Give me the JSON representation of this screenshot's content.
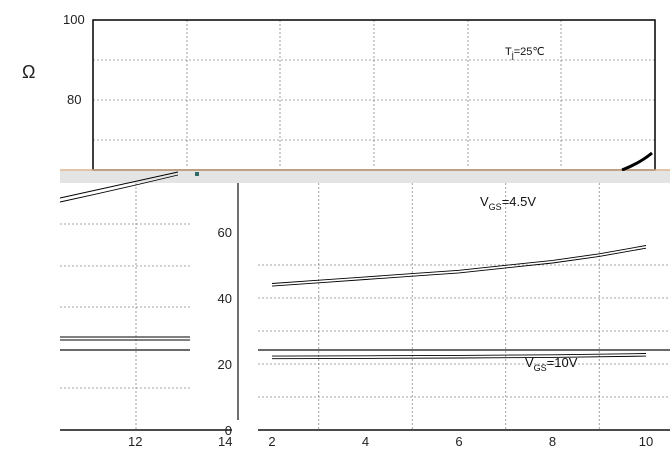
{
  "chart_data": {
    "type": "line",
    "title": "",
    "xlabel": "",
    "ylabel": "Ω",
    "temperature_note": {
      "symbol": "T",
      "sub": "j",
      "rest": "=25℃"
    },
    "lower_x_ticks": [
      "2",
      "4",
      "6",
      "8",
      "10"
    ],
    "left_x_ticks": [
      "12",
      "14"
    ],
    "y_ticks_upper": [
      "100",
      "80"
    ],
    "y_ticks_lower": [
      "60",
      "40",
      "20",
      "0"
    ],
    "xlim": [
      2,
      10
    ],
    "ylim": [
      0,
      100
    ],
    "grid": true,
    "series": [
      {
        "label": {
          "symbol": "V",
          "sub": "GS",
          "rest": "=4.5V"
        },
        "x": [
          2,
          3,
          4,
          5,
          6,
          7,
          8,
          9,
          10
        ],
        "y": [
          44,
          45,
          46,
          47,
          48,
          49.5,
          51,
          53,
          55.5
        ]
      },
      {
        "label": {
          "symbol": "V",
          "sub": "GS",
          "rest": "=10V"
        },
        "x": [
          2,
          4,
          6,
          8,
          10
        ],
        "y": [
          22,
          22.1,
          22.2,
          22.4,
          22.8
        ]
      }
    ]
  }
}
